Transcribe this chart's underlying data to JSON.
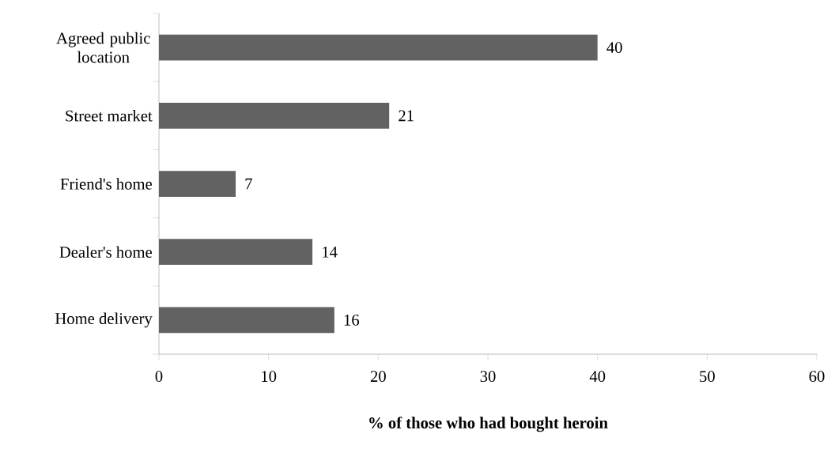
{
  "chart_data": {
    "type": "bar",
    "orientation": "horizontal",
    "xlabel": "% of those who had bought heroin",
    "categories": [
      "Agreed public location",
      "Street market",
      "Friend's home",
      "Dealer's home",
      "Home delivery"
    ],
    "values": [
      40,
      21,
      7,
      14,
      16
    ],
    "color": "#626262",
    "data_labels": true,
    "xlim": [
      0,
      60
    ],
    "xticks": [
      0,
      10,
      20,
      30,
      40,
      50,
      60
    ]
  }
}
